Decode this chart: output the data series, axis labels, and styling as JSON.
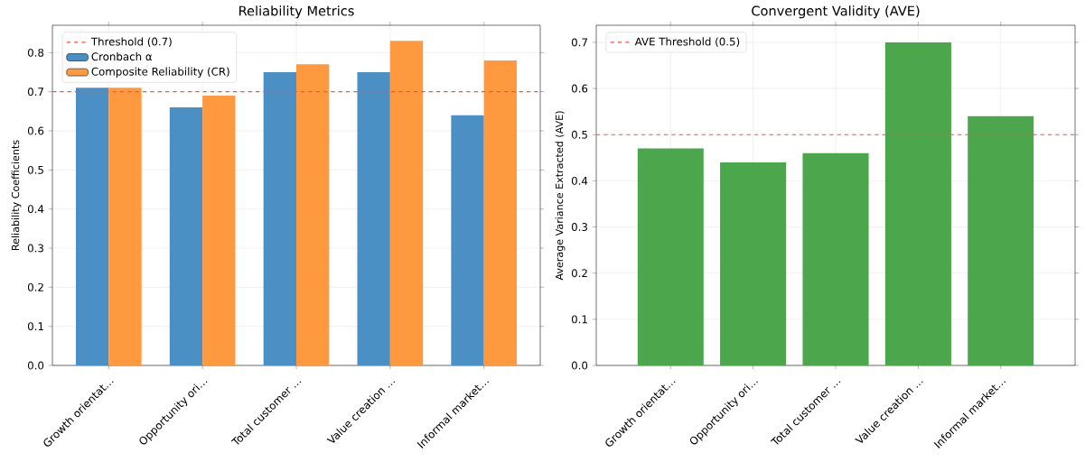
{
  "chart_data": [
    {
      "type": "bar",
      "title": "Reliability Metrics",
      "ylabel": "Reliability Coefficients",
      "categories": [
        "Growth orientat…",
        "Opportunity ori…",
        "Total customer …",
        "Value creation …",
        "Informal market…"
      ],
      "series": [
        {
          "name": "Cronbach α",
          "color": "#4a90c4",
          "values": [
            0.71,
            0.66,
            0.75,
            0.75,
            0.64
          ]
        },
        {
          "name": "Composite Reliability (CR)",
          "color": "#ff9940",
          "values": [
            0.71,
            0.69,
            0.77,
            0.83,
            0.78
          ]
        }
      ],
      "ylim": [
        0,
        0.87
      ],
      "yticks": [
        {
          "value": 0,
          "label": "0.0"
        },
        0.1,
        0.2,
        0.3,
        0.4,
        0.5,
        0.6,
        0.7,
        0.8
      ],
      "ref_lines": [
        {
          "axis": "y",
          "value": 0.7,
          "label": "Threshold (0.7)",
          "color": "#ff4d4d",
          "line_style": "dashed"
        }
      ],
      "grid": true,
      "legend": "top left"
    },
    {
      "type": "bar",
      "title": "Convergent Validity (AVE)",
      "ylabel": "Average Variance Extracted (AVE)",
      "categories": [
        "Growth orientat…",
        "Opportunity ori…",
        "Total customer …",
        "Value creation …",
        "Informal market…"
      ],
      "series": [
        {
          "color": "#4ca64c",
          "values": [
            0.47,
            0.44,
            0.46,
            0.7,
            0.54
          ]
        }
      ],
      "ylim": [
        0,
        0.737
      ],
      "yticks": [
        {
          "value": 0,
          "label": "0.0"
        },
        0.1,
        0.2,
        0.3,
        0.4,
        0.5,
        0.6,
        0.7
      ],
      "ref_lines": [
        {
          "axis": "y",
          "value": 0.5,
          "label": "AVE Threshold (0.5)",
          "color": "#ff4d4d",
          "line_style": "dashed"
        }
      ],
      "grid": true,
      "legend": "top left"
    }
  ]
}
